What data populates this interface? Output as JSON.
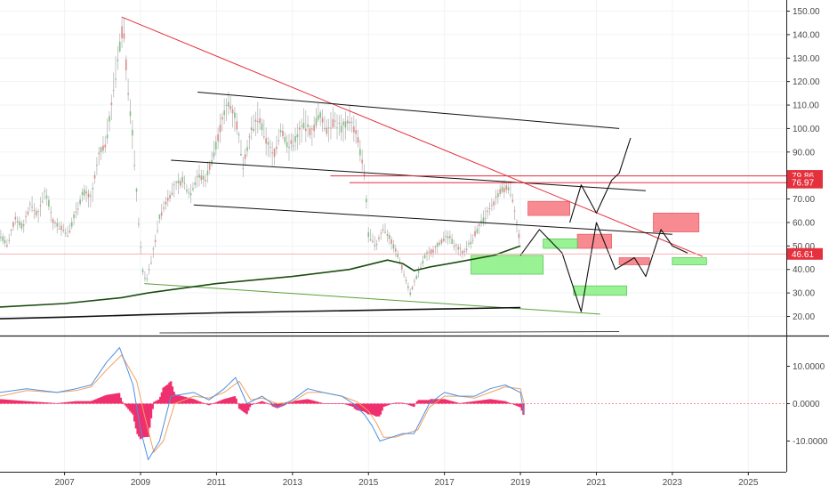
{
  "chart_data": [
    {
      "type": "line",
      "panel": "price",
      "price_scale": {
        "ticks": [
          "150.00",
          "140.00",
          "130.00",
          "120.00",
          "110.00",
          "100.00",
          "90.00",
          "80.00",
          "70.00",
          "60.00",
          "50.00",
          "40.00",
          "30.00",
          "20.00"
        ],
        "tick_values": [
          150,
          140,
          130,
          120,
          110,
          100,
          90,
          80,
          70,
          60,
          50,
          40,
          30,
          20
        ],
        "ylim": [
          11,
          155
        ]
      },
      "x_axis": {
        "ticks": [
          "2007",
          "2009",
          "2011",
          "2013",
          "2015",
          "2017",
          "2019",
          "2021",
          "2023",
          "2025"
        ],
        "tick_values": [
          2007,
          2009,
          2011,
          2013,
          2015,
          2017,
          2019,
          2021,
          2023,
          2025
        ],
        "xlim": [
          2005.3,
          2026.0
        ]
      },
      "price_labels": [
        {
          "text": "79.86",
          "value": 79.86,
          "color": "#e5303d"
        },
        {
          "text": "76.97",
          "value": 76.97,
          "color": "#e5303d"
        },
        {
          "text": "46.61",
          "value": 46.61,
          "color": "#e5303d"
        }
      ],
      "price_series": [
        [
          2005.3,
          55
        ],
        [
          2005.5,
          50
        ],
        [
          2005.7,
          62
        ],
        [
          2005.9,
          58
        ],
        [
          2006.1,
          68
        ],
        [
          2006.3,
          63
        ],
        [
          2006.5,
          74
        ],
        [
          2006.7,
          60
        ],
        [
          2006.9,
          58
        ],
        [
          2007.1,
          55
        ],
        [
          2007.3,
          65
        ],
        [
          2007.5,
          73
        ],
        [
          2007.7,
          70
        ],
        [
          2007.9,
          88
        ],
        [
          2008.1,
          95
        ],
        [
          2008.3,
          118
        ],
        [
          2008.45,
          135
        ],
        [
          2008.55,
          145
        ],
        [
          2008.65,
          120
        ],
        [
          2008.8,
          95
        ],
        [
          2008.95,
          60
        ],
        [
          2009.05,
          40
        ],
        [
          2009.15,
          35
        ],
        [
          2009.3,
          45
        ],
        [
          2009.5,
          62
        ],
        [
          2009.7,
          70
        ],
        [
          2009.9,
          75
        ],
        [
          2010.1,
          78
        ],
        [
          2010.3,
          72
        ],
        [
          2010.5,
          80
        ],
        [
          2010.7,
          78
        ],
        [
          2010.9,
          88
        ],
        [
          2011.1,
          100
        ],
        [
          2011.3,
          112
        ],
        [
          2011.5,
          105
        ],
        [
          2011.7,
          85
        ],
        [
          2011.9,
          98
        ],
        [
          2012.1,
          105
        ],
        [
          2012.3,
          95
        ],
        [
          2012.5,
          88
        ],
        [
          2012.7,
          100
        ],
        [
          2012.9,
          92
        ],
        [
          2013.1,
          96
        ],
        [
          2013.3,
          102
        ],
        [
          2013.5,
          98
        ],
        [
          2013.7,
          106
        ],
        [
          2013.9,
          100
        ],
        [
          2014.1,
          103
        ],
        [
          2014.3,
          100
        ],
        [
          2014.5,
          104
        ],
        [
          2014.7,
          97
        ],
        [
          2014.9,
          80
        ],
        [
          2015.0,
          55
        ],
        [
          2015.2,
          50
        ],
        [
          2015.4,
          58
        ],
        [
          2015.6,
          52
        ],
        [
          2015.8,
          45
        ],
        [
          2016.0,
          35
        ],
        [
          2016.1,
          30
        ],
        [
          2016.3,
          38
        ],
        [
          2016.5,
          46
        ],
        [
          2016.7,
          48
        ],
        [
          2016.9,
          52
        ],
        [
          2017.1,
          54
        ],
        [
          2017.3,
          50
        ],
        [
          2017.5,
          47
        ],
        [
          2017.7,
          52
        ],
        [
          2017.9,
          58
        ],
        [
          2018.1,
          63
        ],
        [
          2018.3,
          68
        ],
        [
          2018.5,
          74
        ],
        [
          2018.7,
          75
        ],
        [
          2018.8,
          70
        ],
        [
          2018.9,
          60
        ],
        [
          2019.0,
          50
        ]
      ],
      "moving_averages": [
        {
          "color": "#1b4d0f",
          "points": [
            [
              2005.3,
              24
            ],
            [
              2007,
              25.5
            ],
            [
              2008.5,
              28
            ],
            [
              2009.2,
              30
            ],
            [
              2011,
              34
            ],
            [
              2013,
              37
            ],
            [
              2014.5,
              40
            ],
            [
              2015.5,
              44
            ],
            [
              2015.9,
              42.5
            ],
            [
              2016.2,
              39.5
            ],
            [
              2016.6,
              41
            ],
            [
              2017.3,
              43
            ],
            [
              2018.3,
              46
            ],
            [
              2019.0,
              50
            ]
          ]
        },
        {
          "color": "#111111",
          "points": [
            [
              2005.3,
              19
            ],
            [
              2007,
              19.7
            ],
            [
              2009,
              20.7
            ],
            [
              2011,
              21.5
            ],
            [
              2013,
              22.1
            ],
            [
              2015,
              22.6
            ],
            [
              2017,
              23.2
            ],
            [
              2019,
              23.8
            ]
          ]
        }
      ],
      "trendlines": [
        {
          "color": "#e5303d",
          "points": [
            [
              2008.5,
              147.5
            ],
            [
              2023.8,
              45.5
            ]
          ]
        },
        {
          "color": "#111111",
          "points": [
            [
              2010.5,
              115.5
            ],
            [
              2021.6,
              100
            ]
          ]
        },
        {
          "color": "#111111",
          "points": [
            [
              2009.8,
              86.5
            ],
            [
              2022.3,
              73.5
            ]
          ]
        },
        {
          "color": "#111111",
          "points": [
            [
              2010.4,
              67.5
            ],
            [
              2023,
              55
            ]
          ]
        },
        {
          "color": "#5aa03a",
          "points": [
            [
              2009.1,
              34
            ],
            [
              2021.1,
              21
            ]
          ]
        },
        {
          "color": "#e5303d",
          "points": [
            [
              2014.0,
              79.86
            ],
            [
              2026.0,
              79.86
            ]
          ]
        },
        {
          "color": "#e5303d",
          "points": [
            [
              2014.5,
              76.97
            ],
            [
              2026.0,
              76.97
            ]
          ]
        },
        {
          "color": "#111111",
          "points": [
            [
              2009.5,
              13
            ],
            [
              2021.6,
              13.5
            ]
          ]
        }
      ],
      "forecast_path": [
        [
          2019.0,
          46
        ],
        [
          2019.6,
          66
        ],
        [
          2020.2,
          48
        ],
        [
          2020.6,
          66
        ],
        [
          2021.0,
          68
        ],
        [
          2021.4,
          79
        ],
        [
          2021.55,
          75
        ],
        [
          2021.8,
          100
        ],
        [
          2022.4,
          76
        ],
        [
          2022.6,
          71
        ],
        [
          2023.0,
          57
        ],
        [
          2023.4,
          45
        ]
      ],
      "forecast_path_2": [
        [
          2020.3,
          60
        ],
        [
          2020.6,
          76
        ],
        [
          2021.0,
          64
        ],
        [
          2021.4,
          78
        ],
        [
          2021.6,
          81
        ],
        [
          2021.9,
          96
        ]
      ],
      "forecast_path_3": [
        [
          2019.0,
          46
        ],
        [
          2019.5,
          57
        ],
        [
          2020.1,
          47
        ],
        [
          2020.6,
          22
        ],
        [
          2021.0,
          60
        ],
        [
          2021.5,
          40
        ],
        [
          2022.0,
          45
        ],
        [
          2022.3,
          37
        ],
        [
          2022.7,
          57
        ],
        [
          2023.0,
          50
        ],
        [
          2023.4,
          47
        ]
      ],
      "zones": [
        {
          "kind": "bear",
          "x0": 2019.2,
          "x1": 2020.3,
          "y0": 63,
          "y1": 69
        },
        {
          "kind": "bear",
          "x0": 2020.5,
          "x1": 2021.4,
          "y0": 49,
          "y1": 55
        },
        {
          "kind": "bear",
          "x0": 2021.6,
          "x1": 2022.4,
          "y0": 42,
          "y1": 45
        },
        {
          "kind": "bear",
          "x0": 2022.5,
          "x1": 2023.7,
          "y0": 56,
          "y1": 64
        },
        {
          "kind": "bull",
          "x0": 2017.7,
          "x1": 2019.6,
          "y0": 38,
          "y1": 46
        },
        {
          "kind": "bull",
          "x0": 2019.6,
          "x1": 2020.5,
          "y0": 49,
          "y1": 53
        },
        {
          "kind": "bull",
          "x0": 2020.4,
          "x1": 2021.8,
          "y0": 29,
          "y1": 33
        },
        {
          "kind": "bull",
          "x0": 2023.0,
          "x1": 2023.9,
          "y0": 42,
          "y1": 45
        }
      ],
      "colors": {
        "bear": "#f77f86",
        "bull": "#8ff28a",
        "candles": "#bdbdbd",
        "up": "#4caf50",
        "down": "#e05a5a"
      }
    },
    {
      "type": "line",
      "panel": "macd",
      "ticks": [
        "10.0000",
        "0.0000",
        "-10.0000"
      ],
      "tick_values": [
        10,
        0,
        -10
      ],
      "ylim": [
        -19,
        16
      ],
      "macd": [
        [
          2005.3,
          3
        ],
        [
          2006,
          4
        ],
        [
          2006.8,
          3
        ],
        [
          2007.3,
          4
        ],
        [
          2007.7,
          5
        ],
        [
          2008.1,
          11
        ],
        [
          2008.45,
          15
        ],
        [
          2008.8,
          5
        ],
        [
          2009.0,
          -7
        ],
        [
          2009.2,
          -15
        ],
        [
          2009.5,
          -10
        ],
        [
          2009.8,
          2
        ],
        [
          2010.4,
          3
        ],
        [
          2010.8,
          1
        ],
        [
          2011.2,
          4
        ],
        [
          2011.5,
          7
        ],
        [
          2011.8,
          0
        ],
        [
          2012.2,
          2
        ],
        [
          2012.6,
          -1
        ],
        [
          2013.0,
          1
        ],
        [
          2013.4,
          4
        ],
        [
          2013.8,
          3
        ],
        [
          2014.3,
          2
        ],
        [
          2014.6,
          0
        ],
        [
          2014.9,
          -3
        ],
        [
          2015.1,
          -6
        ],
        [
          2015.3,
          -10
        ],
        [
          2015.6,
          -9
        ],
        [
          2015.9,
          -8
        ],
        [
          2016.2,
          -8
        ],
        [
          2016.6,
          0
        ],
        [
          2017.0,
          3
        ],
        [
          2017.4,
          2
        ],
        [
          2017.8,
          2
        ],
        [
          2018.2,
          4
        ],
        [
          2018.6,
          5
        ],
        [
          2019.0,
          3
        ],
        [
          2019.1,
          -3
        ]
      ],
      "signal": [
        [
          2005.3,
          2
        ],
        [
          2006,
          3.5
        ],
        [
          2006.8,
          3
        ],
        [
          2007.3,
          3.5
        ],
        [
          2007.7,
          4.5
        ],
        [
          2008.1,
          9
        ],
        [
          2008.5,
          13
        ],
        [
          2008.9,
          6
        ],
        [
          2009.1,
          -3
        ],
        [
          2009.35,
          -13
        ],
        [
          2009.6,
          -10
        ],
        [
          2009.9,
          0
        ],
        [
          2010.4,
          2
        ],
        [
          2010.8,
          1.5
        ],
        [
          2011.2,
          3
        ],
        [
          2011.6,
          6
        ],
        [
          2011.9,
          1
        ],
        [
          2012.2,
          1.5
        ],
        [
          2012.6,
          0
        ],
        [
          2013.0,
          0.5
        ],
        [
          2013.4,
          3
        ],
        [
          2013.8,
          3
        ],
        [
          2014.3,
          2
        ],
        [
          2014.7,
          0.5
        ],
        [
          2015.0,
          -2
        ],
        [
          2015.2,
          -5
        ],
        [
          2015.4,
          -9
        ],
        [
          2015.7,
          -9
        ],
        [
          2016.0,
          -8
        ],
        [
          2016.3,
          -7
        ],
        [
          2016.6,
          -1
        ],
        [
          2017.0,
          2
        ],
        [
          2017.4,
          2
        ],
        [
          2017.8,
          1.5
        ],
        [
          2018.2,
          3
        ],
        [
          2018.6,
          4.5
        ],
        [
          2019.0,
          4
        ],
        [
          2019.1,
          0
        ]
      ],
      "histogram_hint": "difference of macd and signal",
      "colors": {
        "macd": "#4f8fe0",
        "signal": "#f0a160",
        "hist": "#f0306e",
        "zero": "#e5303d"
      }
    }
  ]
}
